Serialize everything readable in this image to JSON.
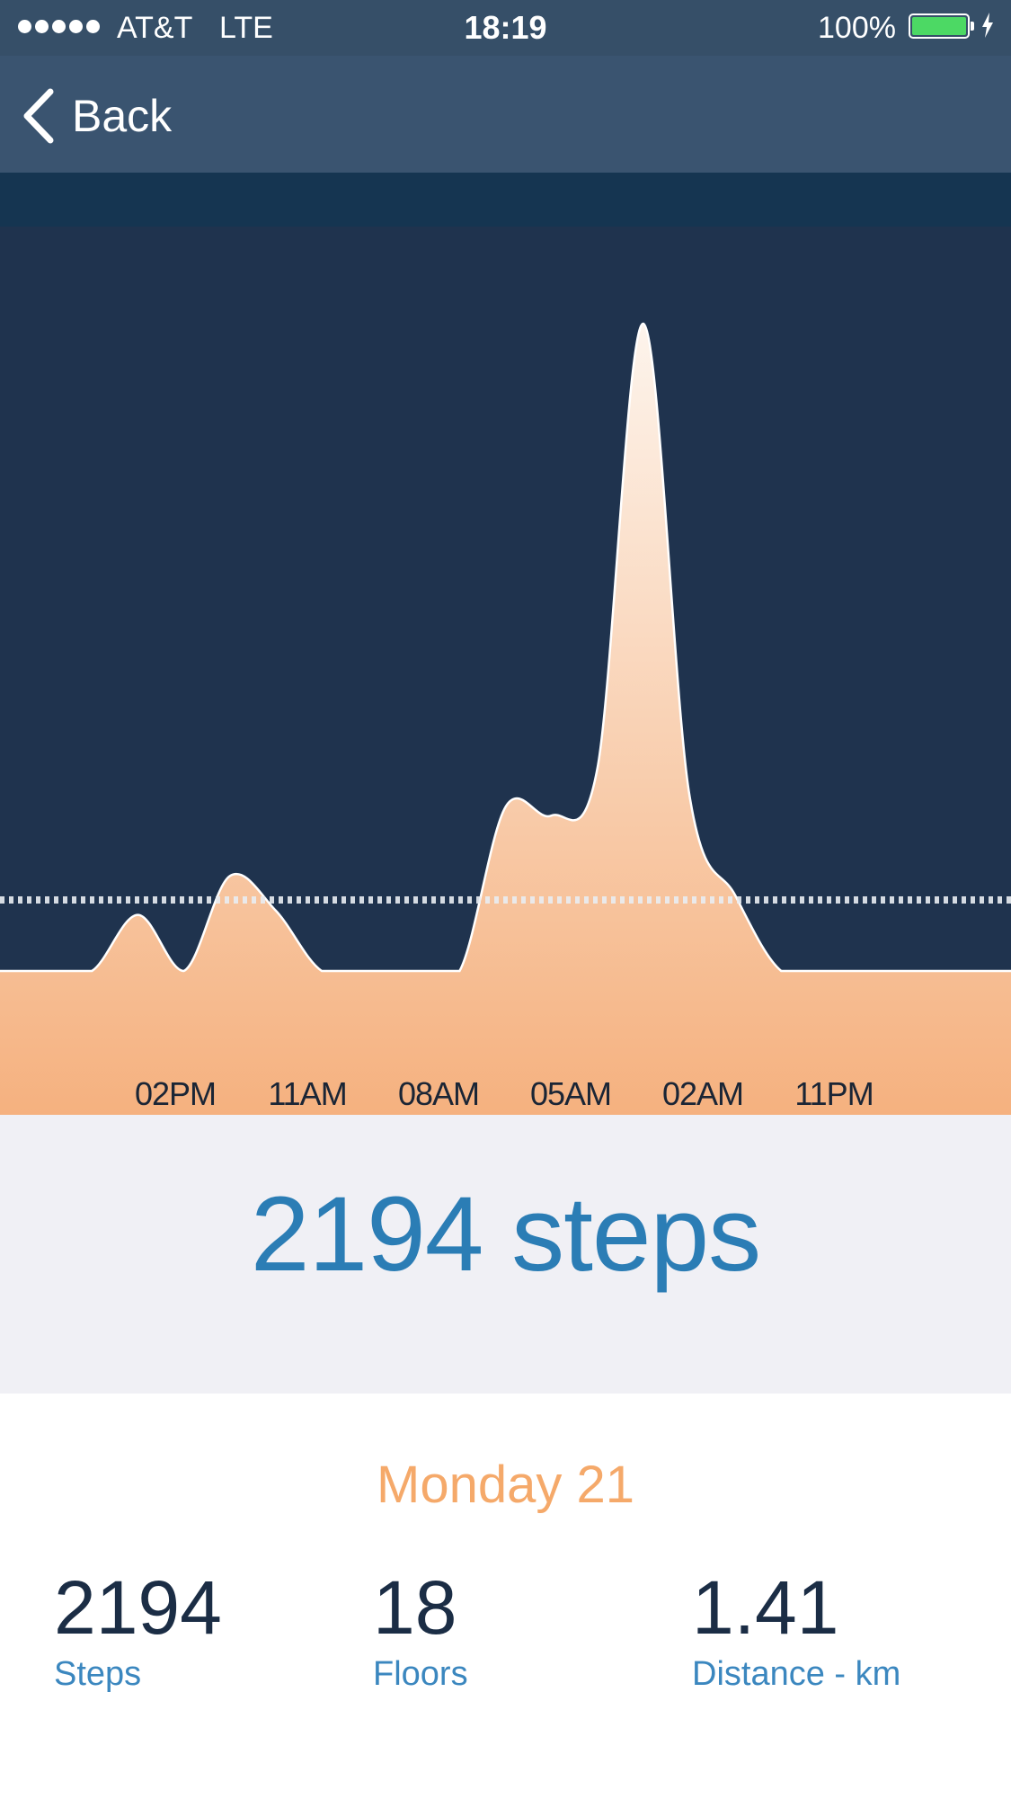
{
  "status_bar": {
    "carrier": "AT&T",
    "network": "LTE",
    "time": "18:19",
    "battery_percent": "100%",
    "battery_level": 1.0
  },
  "nav": {
    "back_label": "Back"
  },
  "colors": {
    "status_bar_bg": "#364f68",
    "nav_bg": "#3a5470",
    "chart_bg": "#1f334e",
    "area_fill_top": "#fdf4ec",
    "area_fill_bottom": "#f5b17f",
    "steps_text": "#2b7db5",
    "day_text": "#f5a96a",
    "stat_value": "#1b2d45",
    "stat_label": "#3b87bf"
  },
  "chart_data": {
    "type": "area",
    "x_tick_labels": [
      "02PM",
      "11AM",
      "08AM",
      "05AM",
      "02AM",
      "11PM"
    ],
    "average_line": true,
    "series": [
      {
        "values": [
          0,
          0,
          0,
          26,
          0,
          44,
          28,
          0,
          0,
          0,
          0,
          76,
          72,
          94,
          300,
          82,
          35,
          0,
          0,
          0,
          0,
          0,
          0
        ]
      }
    ]
  },
  "steps_total": "2194 steps",
  "summary": {
    "day": "Monday 21",
    "stats": [
      {
        "value": "2194",
        "label": "Steps"
      },
      {
        "value": "18",
        "label": "Floors"
      },
      {
        "value": "1.41",
        "label": "Distance - km"
      }
    ]
  }
}
